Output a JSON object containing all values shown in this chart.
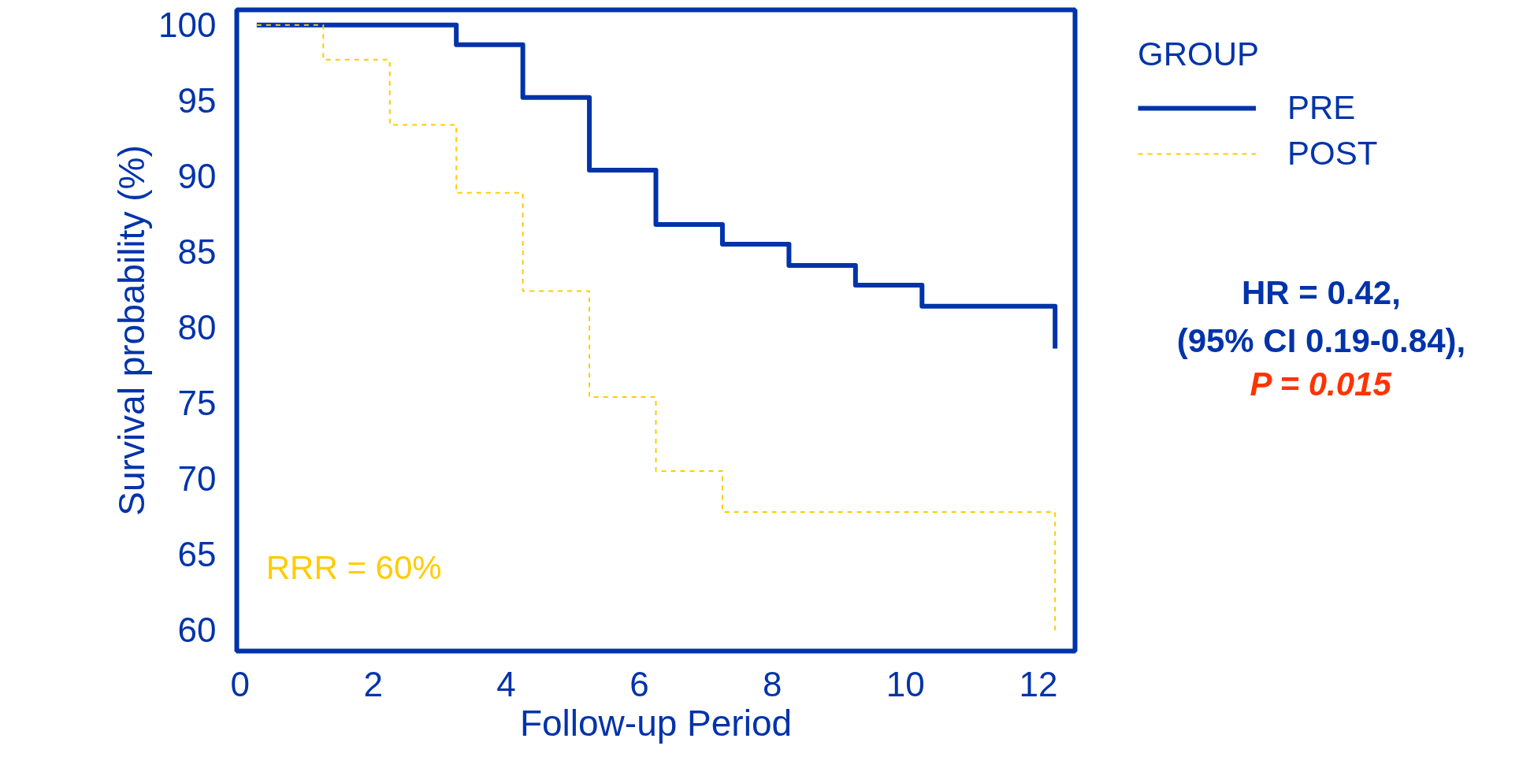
{
  "chart_data": {
    "type": "step",
    "xlabel": "Follow-up Period",
    "ylabel": "Survival probability (%)",
    "legend_title": "GROUP",
    "series": [
      {
        "name": "PRE",
        "color": "#0033aa",
        "line_style": "solid",
        "x": [
          0.25,
          3.25,
          4.25,
          5.25,
          6.25,
          7.25,
          8.25,
          9.25,
          10.25,
          12.25
        ],
        "values": [
          100,
          98.7,
          95.2,
          90.4,
          86.8,
          85.5,
          84.1,
          82.8,
          81.4,
          78.6
        ]
      },
      {
        "name": "POST",
        "color": "#ffcc00",
        "line_style": "dashed",
        "x": [
          0.25,
          1.25,
          2.25,
          3.25,
          4.25,
          5.25,
          6.25,
          7.25,
          12.25
        ],
        "values": [
          100,
          97.7,
          93.4,
          88.9,
          82.4,
          75.4,
          70.5,
          67.8,
          59.8
        ]
      }
    ],
    "xlim": [
      -0.05,
      12.55
    ],
    "ylim": [
      58.6,
      101
    ],
    "xticks": [
      0,
      2,
      4,
      6,
      8,
      10,
      12
    ],
    "yticks": [
      60,
      65,
      70,
      75,
      80,
      85,
      90,
      95,
      100
    ],
    "legend": "top right",
    "grid": false,
    "annotations": [
      "RRR = 60%",
      "HR = 0.42,",
      "(95% CI 0.19-0.84),",
      "P = 0.015"
    ]
  }
}
